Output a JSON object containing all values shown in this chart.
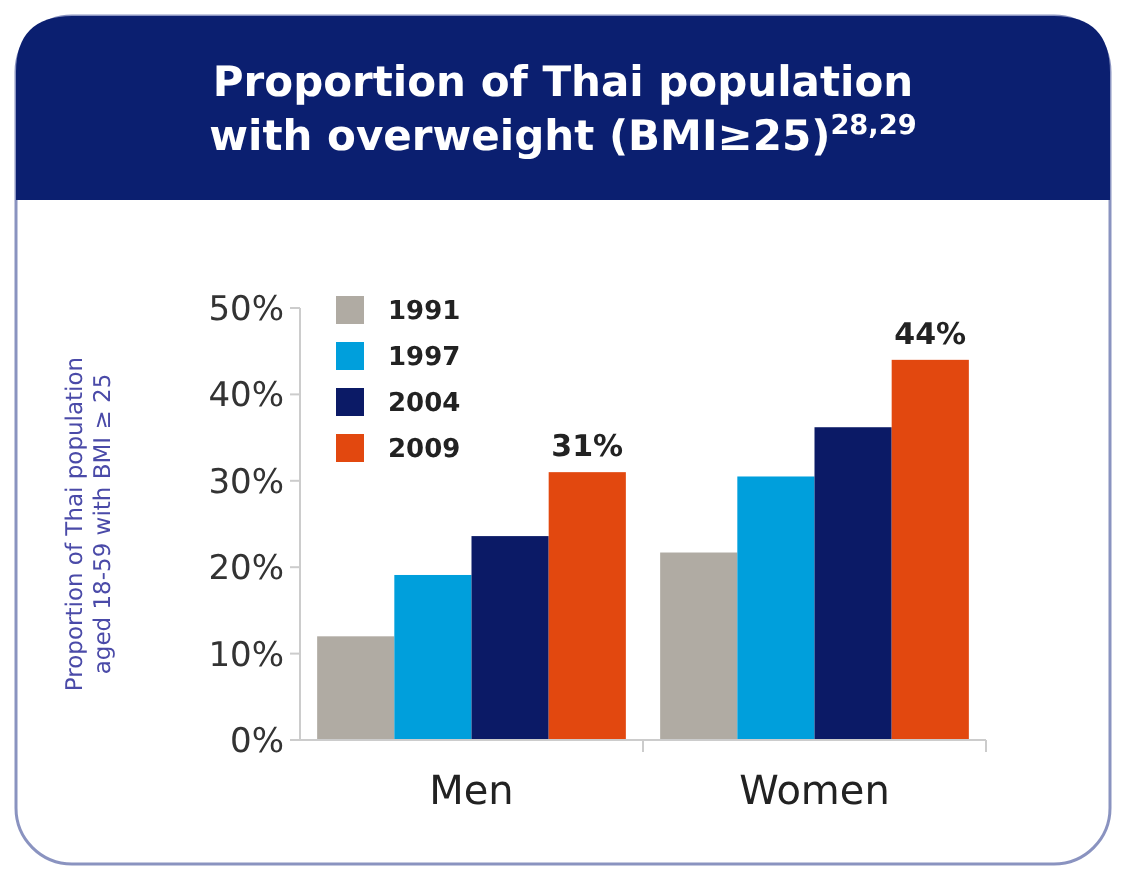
{
  "chart_data": {
    "type": "bar",
    "title": "Proportion of Thai population with overweight (BMI≥25)$^{28,29}$",
    "ylabel": "Proportion of Thai population aged 18-59 with BMI ≥ 25",
    "categories": [
      "Men",
      "Women"
    ],
    "series": [
      {
        "name": "1991",
        "color": "#b0aba3",
        "values": [
          12,
          21.7
        ]
      },
      {
        "name": "1997",
        "color": "#009fdc",
        "values": [
          19.1,
          30.5
        ]
      },
      {
        "name": "2004",
        "color": "#0b1a66",
        "values": [
          23.6,
          36.2
        ]
      },
      {
        "name": "2009",
        "color": "#e2480f",
        "values": [
          31,
          44
        ],
        "value_labels": [
          "31%",
          "44%"
        ]
      }
    ],
    "ylim": [
      0,
      50
    ],
    "yticks": [
      {
        "value": 0,
        "label": "0%"
      },
      {
        "value": 10,
        "label": "10%"
      },
      {
        "value": 20,
        "label": "20%"
      },
      {
        "value": 30,
        "label": "30%"
      },
      {
        "value": 40,
        "label": "40%"
      },
      {
        "value": 50,
        "label": "50%"
      }
    ],
    "legend": "top left",
    "grid": false
  }
}
